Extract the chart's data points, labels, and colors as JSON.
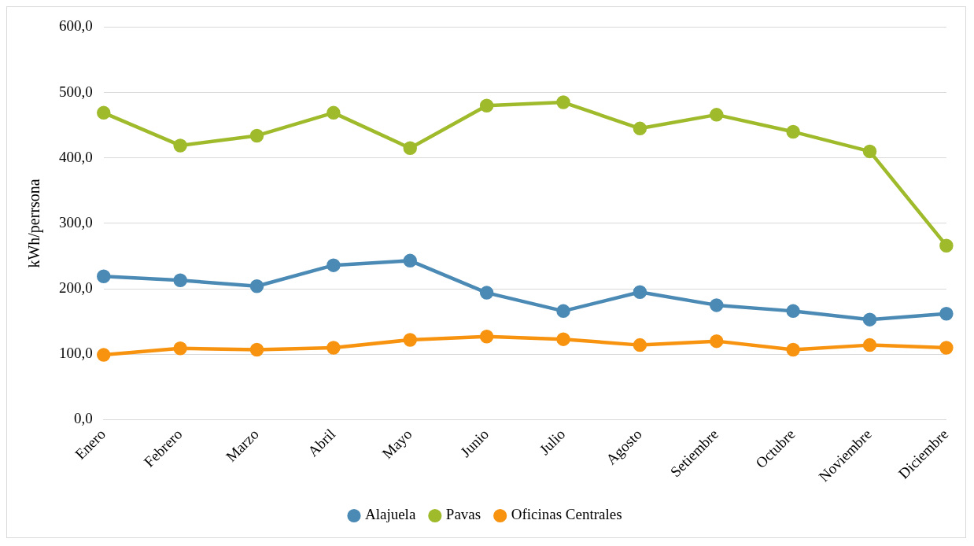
{
  "chart_data": {
    "type": "line",
    "ylabel": "kWh/perrsona",
    "categories": [
      "Enero",
      "Febrero",
      "Marzo",
      "Abril",
      "Mayo",
      "Junio",
      "Julio",
      "Agosto",
      "Setiembre",
      "Octubre",
      "Noviembre",
      "Diciembre"
    ],
    "series": [
      {
        "name": "Alajuela",
        "color": "#4a8ab5",
        "values": [
          219,
          213,
          204,
          236,
          243,
          194,
          166,
          195,
          175,
          166,
          153,
          162
        ]
      },
      {
        "name": "Pavas",
        "color": "#9fbb2b",
        "values": [
          469,
          419,
          434,
          469,
          415,
          480,
          485,
          445,
          466,
          440,
          410,
          266
        ]
      },
      {
        "name": "Oficinas Centrales",
        "color": "#f7930f",
        "values": [
          99,
          109,
          107,
          110,
          122,
          127,
          123,
          114,
          120,
          107,
          114,
          110
        ]
      }
    ],
    "ylim": [
      0,
      600
    ],
    "yticks": [
      {
        "value": 0,
        "label": "0,0"
      },
      {
        "value": 100,
        "label": "100,0"
      },
      {
        "value": 200,
        "label": "200,0"
      },
      {
        "value": 300,
        "label": "300,0"
      },
      {
        "value": 400,
        "label": "400,0"
      },
      {
        "value": 500,
        "label": "500,0"
      },
      {
        "value": 600,
        "label": "600,0"
      }
    ],
    "grid": "y",
    "legend": "bottom",
    "marker": "circle",
    "line_style": "solid"
  }
}
